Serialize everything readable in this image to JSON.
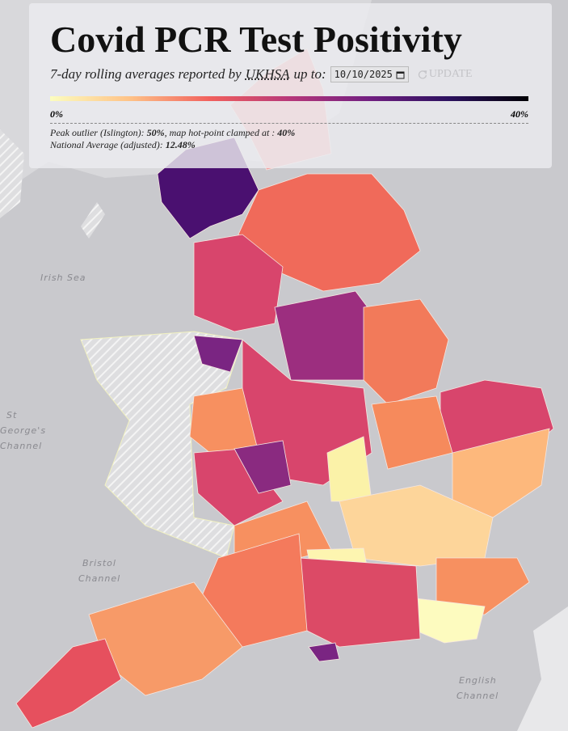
{
  "header": {
    "title": "Covid PCR Test Positivity",
    "subtitle_prefix": "7-day rolling averages reported by",
    "source_link": "UKHSA",
    "subtitle_suffix": "up to:",
    "date": "10/10/2025",
    "button": "UPDATE"
  },
  "legend": {
    "min_label": "0%",
    "max_label": "40%"
  },
  "notes": [
    {
      "label": "Peak outlier (Islington):",
      "value": "50%",
      "label2": ", map hot-point clamped at :",
      "value2": "40%"
    },
    {
      "label": "National Average (adjusted):",
      "value": "12.48%"
    }
  ],
  "map_labels": {
    "irish_sea": "Irish Sea",
    "st_georges": [
      "St",
      "George's",
      "Channel"
    ],
    "bristol": [
      "Bristol",
      "Channel"
    ],
    "english": [
      "English",
      "Channel"
    ]
  }
}
